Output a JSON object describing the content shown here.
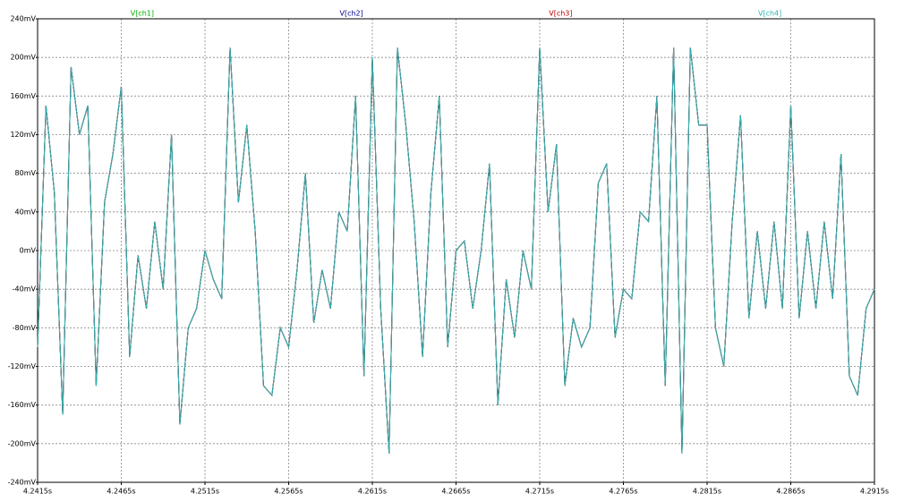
{
  "chart_data": {
    "type": "line",
    "grid": true,
    "x": [
      4.2415,
      4.242,
      4.2425,
      4.243,
      4.2435,
      4.244,
      4.2445,
      4.245,
      4.2455,
      4.246,
      4.2465,
      4.247,
      4.2475,
      4.248,
      4.2485,
      4.249,
      4.2495,
      4.25,
      4.2505,
      4.251,
      4.2515,
      4.252,
      4.2525,
      4.253,
      4.2535,
      4.254,
      4.2545,
      4.255,
      4.2555,
      4.256,
      4.2565,
      4.257,
      4.2575,
      4.258,
      4.2585,
      4.259,
      4.2595,
      4.26,
      4.2605,
      4.261,
      4.2615,
      4.262,
      4.2625,
      4.263,
      4.2635,
      4.264,
      4.2645,
      4.265,
      4.2655,
      4.266,
      4.2665,
      4.267,
      4.2675,
      4.268,
      4.2685,
      4.269,
      4.2695,
      4.27,
      4.2705,
      4.271,
      4.2715,
      4.272,
      4.2725,
      4.273,
      4.2735,
      4.274,
      4.2745,
      4.275,
      4.2755,
      4.276,
      4.2765,
      4.277,
      4.2775,
      4.278,
      4.2785,
      4.279,
      4.2795,
      4.28,
      4.2805,
      4.281,
      4.2815,
      4.282,
      4.2825,
      4.283,
      4.2835,
      4.284,
      4.2845,
      4.285,
      4.2855,
      4.286,
      4.2865,
      4.287,
      4.2875,
      4.288,
      4.2885,
      4.289,
      4.2895,
      4.29,
      4.2905,
      4.291,
      4.2915
    ],
    "series": [
      {
        "name": "V[ch1]",
        "color": "#00b000",
        "values": [
          -100,
          150,
          60,
          -170,
          190,
          120,
          150,
          -140,
          50,
          100,
          170,
          -110,
          -5,
          -60,
          30,
          -40,
          120,
          -180,
          -80,
          -60,
          0,
          -30,
          -50,
          210,
          50,
          130,
          20,
          -140,
          -150,
          -80,
          -100,
          -20,
          80,
          -75,
          -20,
          -60,
          40,
          20,
          160,
          -130,
          200,
          -60,
          -210,
          210,
          130,
          30,
          -110,
          60,
          160,
          -100,
          0,
          10,
          -60,
          0,
          90,
          -160,
          -30,
          -90,
          0,
          -40,
          210,
          40,
          110,
          -140,
          -70,
          -100,
          -80,
          70,
          90,
          -90,
          -40,
          -50,
          40,
          30,
          160,
          -140,
          210,
          -210,
          210,
          130,
          130,
          -80,
          -120,
          30,
          140,
          -70,
          20,
          -60,
          30,
          -60,
          150,
          -70,
          20,
          -60,
          30,
          -50,
          100,
          -130,
          -150,
          -60,
          -40
        ]
      },
      {
        "name": "V[ch2]",
        "color": "#000090",
        "values": [
          -100,
          150,
          60,
          -170,
          190,
          120,
          150,
          -140,
          50,
          100,
          170,
          -110,
          -5,
          -60,
          30,
          -40,
          120,
          -180,
          -80,
          -60,
          0,
          -30,
          -50,
          210,
          50,
          130,
          20,
          -140,
          -150,
          -80,
          -100,
          -20,
          80,
          -75,
          -20,
          -60,
          40,
          20,
          160,
          -130,
          200,
          -60,
          -210,
          210,
          130,
          30,
          -110,
          60,
          160,
          -100,
          0,
          10,
          -60,
          0,
          90,
          -160,
          -30,
          -90,
          0,
          -40,
          210,
          40,
          110,
          -140,
          -70,
          -100,
          -80,
          70,
          90,
          -90,
          -40,
          -50,
          40,
          30,
          160,
          -140,
          210,
          -210,
          210,
          130,
          130,
          -80,
          -120,
          30,
          140,
          -70,
          20,
          -60,
          30,
          -60,
          150,
          -70,
          20,
          -60,
          30,
          -50,
          100,
          -130,
          -150,
          -60,
          -40
        ]
      },
      {
        "name": "V[ch3]",
        "color": "#c00000",
        "values": [
          -100,
          150,
          60,
          -170,
          190,
          120,
          150,
          -140,
          50,
          100,
          170,
          -110,
          -5,
          -60,
          30,
          -40,
          120,
          -180,
          -80,
          -60,
          0,
          -30,
          -50,
          210,
          50,
          130,
          20,
          -140,
          -150,
          -80,
          -100,
          -20,
          80,
          -75,
          -20,
          -60,
          40,
          20,
          160,
          -130,
          200,
          -60,
          -210,
          210,
          130,
          30,
          -110,
          60,
          160,
          -100,
          0,
          10,
          -60,
          0,
          90,
          -160,
          -30,
          -90,
          0,
          -40,
          210,
          40,
          110,
          -140,
          -70,
          -100,
          -80,
          70,
          90,
          -90,
          -40,
          -50,
          40,
          30,
          160,
          -140,
          210,
          -210,
          210,
          130,
          130,
          -80,
          -120,
          30,
          140,
          -70,
          20,
          -60,
          30,
          -60,
          150,
          -70,
          20,
          -60,
          30,
          -50,
          100,
          -130,
          -150,
          -60,
          -40
        ]
      },
      {
        "name": "V[ch4]",
        "color": "#30b4b4",
        "values": [
          -100,
          150,
          60,
          -170,
          190,
          120,
          150,
          -140,
          50,
          100,
          170,
          -110,
          -5,
          -60,
          30,
          -40,
          120,
          -180,
          -80,
          -60,
          0,
          -30,
          -50,
          210,
          50,
          130,
          20,
          -140,
          -150,
          -80,
          -100,
          -20,
          80,
          -75,
          -20,
          -60,
          40,
          20,
          160,
          -130,
          200,
          -60,
          -210,
          210,
          130,
          30,
          -110,
          60,
          160,
          -100,
          0,
          10,
          -60,
          0,
          90,
          -160,
          -30,
          -90,
          0,
          -40,
          210,
          40,
          110,
          -140,
          -70,
          -100,
          -80,
          70,
          90,
          -90,
          -40,
          -50,
          40,
          30,
          160,
          -140,
          210,
          -210,
          210,
          130,
          130,
          -80,
          -120,
          30,
          140,
          -70,
          20,
          -60,
          30,
          -60,
          150,
          -70,
          20,
          -60,
          30,
          -50,
          100,
          -130,
          -150,
          -60,
          -40
        ]
      }
    ],
    "xlim": [
      4.2415,
      4.2915
    ],
    "xticks": [
      {
        "value": 4.2415,
        "label": "4.2415s"
      },
      {
        "value": 4.2465,
        "label": "4.2465s"
      },
      {
        "value": 4.2515,
        "label": "4.2515s"
      },
      {
        "value": 4.2565,
        "label": "4.2565s"
      },
      {
        "value": 4.2615,
        "label": "4.2615s"
      },
      {
        "value": 4.2665,
        "label": "4.2665s"
      },
      {
        "value": 4.2715,
        "label": "4.2715s"
      },
      {
        "value": 4.2765,
        "label": "4.2765s"
      },
      {
        "value": 4.2815,
        "label": "4.2815s"
      },
      {
        "value": 4.2865,
        "label": "4.2865s"
      },
      {
        "value": 4.2915,
        "label": "4.2915s"
      }
    ],
    "ylim": [
      -240,
      240
    ],
    "yticks": [
      {
        "value": -240,
        "label": "-240mV"
      },
      {
        "value": -200,
        "label": "-200mV"
      },
      {
        "value": -160,
        "label": "-160mV"
      },
      {
        "value": -120,
        "label": "-120mV"
      },
      {
        "value": -80,
        "label": "-80mV"
      },
      {
        "value": -40,
        "label": "-40mV"
      },
      {
        "value": 0,
        "label": "0mV"
      },
      {
        "value": 40,
        "label": "40mV"
      },
      {
        "value": 80,
        "label": "80mV"
      },
      {
        "value": 120,
        "label": "120mV"
      },
      {
        "value": 160,
        "label": "160mV"
      },
      {
        "value": 200,
        "label": "200mV"
      },
      {
        "value": 240,
        "label": "240mV"
      }
    ]
  }
}
